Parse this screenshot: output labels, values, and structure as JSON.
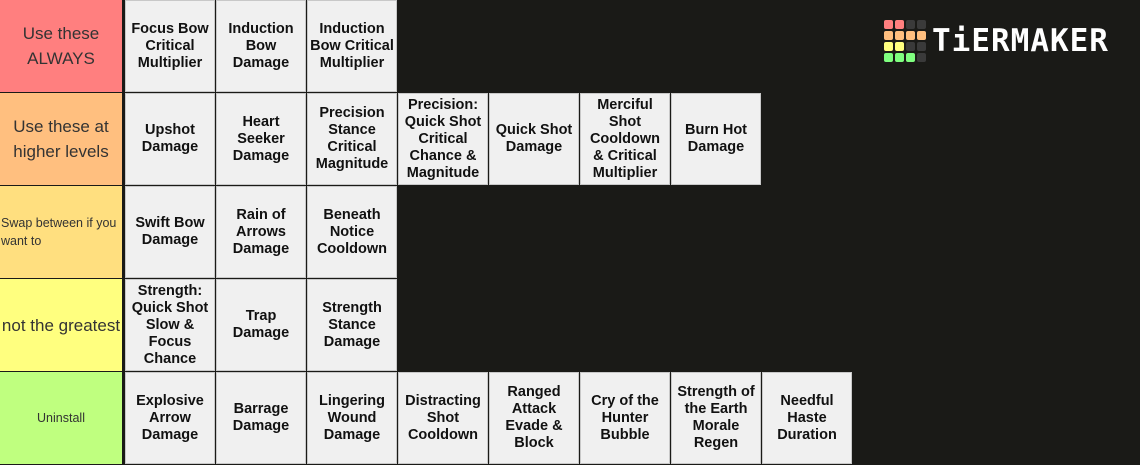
{
  "logo": {
    "text": "TiERMAKER",
    "grid_colors": [
      "#ff7f7f",
      "#ff7f7f",
      "#3a3a3a",
      "#3a3a3a",
      "#ffbf7f",
      "#ffbf7f",
      "#ffbf7f",
      "#ffbf7f",
      "#ffff7f",
      "#ffff7f",
      "#3a3a3a",
      "#3a3a3a",
      "#7fff7f",
      "#7fff7f",
      "#7fff7f",
      "#3a3a3a"
    ]
  },
  "tiers": [
    {
      "label": "Use these ALWAYS",
      "color": "#ff7f7f",
      "items": [
        "Focus Bow Critical Multiplier",
        "Induction Bow Damage",
        "Induction Bow Critical Multiplier"
      ]
    },
    {
      "label": "Use these at higher levels",
      "color": "#ffbf7f",
      "items": [
        "Upshot Damage",
        "Heart Seeker Damage",
        "Precision Stance Critical Magnitude",
        "Precision: Quick Shot Critical Chance & Magnitude",
        "Quick Shot Damage",
        "Merciful Shot Cooldown & Critical Multiplier",
        "Burn Hot Damage"
      ]
    },
    {
      "label": "Swap between if you want to",
      "color": "#ffdf7f",
      "items": [
        "Swift Bow Damage",
        "Rain of Arrows Damage",
        "Beneath Notice Cooldown"
      ]
    },
    {
      "label": "not the greatest",
      "color": "#ffff7f",
      "items": [
        "Strength: Quick Shot Slow & Focus Chance",
        "Trap Damage",
        "Strength Stance Damage"
      ]
    },
    {
      "label": "Uninstall",
      "color": "#bfff7f",
      "items": [
        "Explosive Arrow Damage",
        "Barrage Damage",
        "Lingering Wound Damage",
        "Distracting Shot Cooldown",
        "Ranged Attack Evade & Block",
        "Cry of the Hunter Bubble",
        "Strength of the Earth Morale Regen",
        "Needful Haste Duration"
      ]
    }
  ]
}
